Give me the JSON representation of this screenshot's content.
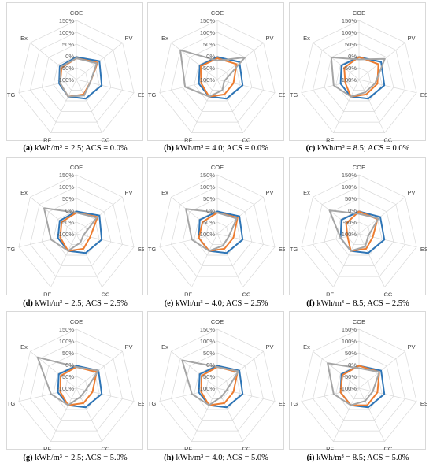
{
  "axes": [
    "COE",
    "PV",
    "ES",
    "CC",
    "RF",
    "TG",
    "Ex"
  ],
  "ticks": [
    "150%",
    "100%",
    "50%",
    "0%",
    "-50%",
    "-100%"
  ],
  "tick_values": [
    150,
    100,
    50,
    0,
    -50,
    -100
  ],
  "series_colors": [
    "#2e75b6",
    "#ed7d31",
    "#a5a5a5"
  ],
  "chart_data": [
    {
      "type": "radar",
      "letter": "(a)",
      "caption": "kWh/m³ = 2.5; ACS = 0.0%",
      "categories": [
        "COE",
        "PV",
        "ES",
        "CC",
        "RF",
        "TG",
        "Ex"
      ],
      "rlim": [
        -100,
        150
      ],
      "series": [
        {
          "values": [
            -5,
            25,
            10,
            -10,
            -20,
            -25,
            -10
          ]
        },
        {
          "values": [
            -10,
            15,
            -40,
            -30,
            -20,
            -30,
            -20
          ]
        },
        {
          "values": [
            -10,
            10,
            -40,
            -25,
            -20,
            -30,
            -15
          ]
        }
      ]
    },
    {
      "type": "radar",
      "letter": "(b)",
      "caption": "kWh/m³ = 4.0; ACS = 0.0%",
      "categories": [
        "COE",
        "PV",
        "ES",
        "CC",
        "RF",
        "TG",
        "Ex"
      ],
      "rlim": [
        -100,
        150
      ],
      "series": [
        {
          "values": [
            -5,
            20,
            10,
            -10,
            -20,
            -20,
            -5
          ]
        },
        {
          "values": [
            -10,
            5,
            -30,
            -30,
            -20,
            -30,
            -10
          ]
        },
        {
          "values": [
            -20,
            50,
            -70,
            -50,
            -20,
            40,
            100
          ]
        }
      ]
    },
    {
      "type": "radar",
      "letter": "(c)",
      "caption": "kWh/m³ = 8.5; ACS = 0.0%",
      "categories": [
        "COE",
        "PV",
        "ES",
        "CC",
        "RF",
        "TG",
        "Ex"
      ],
      "rlim": [
        -100,
        150
      ],
      "series": [
        {
          "values": [
            -5,
            20,
            10,
            -10,
            -20,
            -20,
            -5
          ]
        },
        {
          "values": [
            -5,
            5,
            -20,
            -30,
            -20,
            -40,
            -20
          ]
        },
        {
          "values": [
            -15,
            40,
            -30,
            -40,
            -20,
            10,
            50
          ]
        }
      ]
    },
    {
      "type": "radar",
      "letter": "(d)",
      "caption": "kWh/m³ = 2.5; ACS = 2.5%",
      "categories": [
        "COE",
        "PV",
        "ES",
        "CC",
        "RF",
        "TG",
        "Ex"
      ],
      "rlim": [
        -100,
        150
      ],
      "series": [
        {
          "values": [
            -5,
            25,
            10,
            -10,
            -20,
            -20,
            -10
          ]
        },
        {
          "values": [
            -10,
            15,
            -40,
            -30,
            -20,
            -30,
            -20
          ]
        },
        {
          "values": [
            -10,
            10,
            -70,
            -60,
            -20,
            10,
            75
          ]
        }
      ]
    },
    {
      "type": "radar",
      "letter": "(e)",
      "caption": "kWh/m³ = 4.0; ACS = 2.5%",
      "categories": [
        "COE",
        "PV",
        "ES",
        "CC",
        "RF",
        "TG",
        "Ex"
      ],
      "rlim": [
        -100,
        150
      ],
      "series": [
        {
          "values": [
            -5,
            20,
            10,
            -10,
            -20,
            -20,
            -5
          ]
        },
        {
          "values": [
            -10,
            10,
            -30,
            -30,
            -20,
            -20,
            -20
          ]
        },
        {
          "values": [
            -10,
            5,
            -50,
            -45,
            -20,
            10,
            70
          ]
        }
      ]
    },
    {
      "type": "radar",
      "letter": "(f)",
      "caption": "kWh/m³ = 8.5; ACS = 2.5%",
      "categories": [
        "COE",
        "PV",
        "ES",
        "CC",
        "RF",
        "TG",
        "Ex"
      ],
      "rlim": [
        -100,
        150
      ],
      "series": [
        {
          "values": [
            -5,
            15,
            10,
            -10,
            -20,
            -20,
            -5
          ]
        },
        {
          "values": [
            -5,
            0,
            -40,
            -30,
            -20,
            -50,
            -30
          ]
        },
        {
          "values": [
            -15,
            5,
            -60,
            -40,
            -20,
            -20,
            60
          ]
        }
      ]
    },
    {
      "type": "radar",
      "letter": "(g)",
      "caption": "kWh/m³ = 2.5; ACS = 5.0%",
      "categories": [
        "COE",
        "PV",
        "ES",
        "CC",
        "RF",
        "TG",
        "Ex"
      ],
      "rlim": [
        -100,
        150
      ],
      "series": [
        {
          "values": [
            -5,
            20,
            10,
            -10,
            -20,
            -20,
            -5
          ]
        },
        {
          "values": [
            -10,
            10,
            -30,
            -30,
            -20,
            -30,
            -15
          ]
        },
        {
          "values": [
            -10,
            20,
            -60,
            -60,
            -20,
            10,
            110
          ]
        }
      ]
    },
    {
      "type": "radar",
      "letter": "(h)",
      "caption": "kWh/m³ = 4.0; ACS = 5.0%",
      "categories": [
        "COE",
        "PV",
        "ES",
        "CC",
        "RF",
        "TG",
        "Ex"
      ],
      "rlim": [
        -100,
        150
      ],
      "series": [
        {
          "values": [
            -5,
            20,
            10,
            -10,
            -20,
            -20,
            -5
          ]
        },
        {
          "values": [
            -10,
            10,
            -30,
            -30,
            -20,
            -30,
            -15
          ]
        },
        {
          "values": [
            -10,
            15,
            -60,
            -60,
            -20,
            10,
            90
          ]
        }
      ]
    },
    {
      "type": "radar",
      "letter": "(i)",
      "caption": "kWh/m³ = 8.5; ACS = 5.0%",
      "categories": [
        "COE",
        "PV",
        "ES",
        "CC",
        "RF",
        "TG",
        "Ex"
      ],
      "rlim": [
        -100,
        150
      ],
      "series": [
        {
          "values": [
            -5,
            20,
            10,
            -10,
            -20,
            -20,
            -5
          ]
        },
        {
          "values": [
            -5,
            10,
            -20,
            -20,
            -20,
            -20,
            -10
          ]
        },
        {
          "values": [
            -15,
            10,
            -40,
            -40,
            -20,
            10,
            70
          ]
        }
      ]
    }
  ]
}
